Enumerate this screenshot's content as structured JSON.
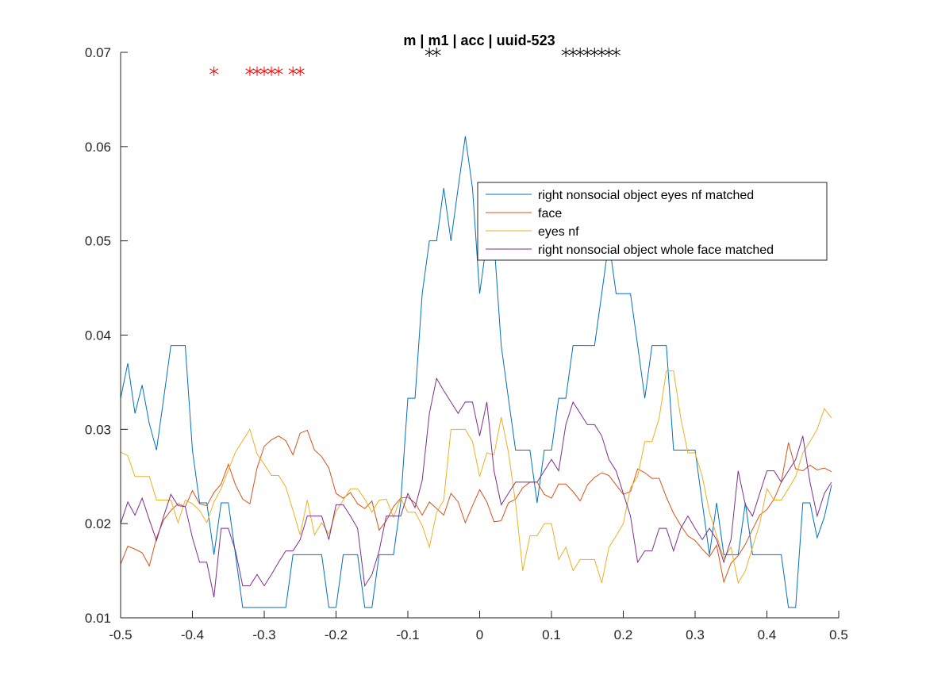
{
  "chart_data": {
    "type": "line",
    "title": "m | m1 | acc | uuid-523",
    "xlabel": "",
    "ylabel": "",
    "xlim": [
      -0.5,
      0.5
    ],
    "ylim": [
      0.01,
      0.07
    ],
    "xticks": [
      -0.5,
      -0.4,
      -0.3,
      -0.2,
      -0.1,
      0,
      0.1,
      0.2,
      0.3,
      0.4,
      0.5
    ],
    "xtick_labels": [
      "-0.5",
      "-0.4",
      "-0.3",
      "-0.2",
      "-0.1",
      "0",
      "0.1",
      "0.2",
      "0.3",
      "0.4",
      "0.5"
    ],
    "yticks": [
      0.01,
      0.02,
      0.03,
      0.04,
      0.05,
      0.06,
      0.07
    ],
    "ytick_labels": [
      "0.01",
      "0.02",
      "0.03",
      "0.04",
      "0.05",
      "0.06",
      "0.07"
    ],
    "grid": false,
    "legend_position": "top-right",
    "x": [
      -0.5,
      -0.49,
      -0.48,
      -0.47,
      -0.46,
      -0.45,
      -0.44,
      -0.43,
      -0.42,
      -0.41,
      -0.4,
      -0.39,
      -0.38,
      -0.37,
      -0.36,
      -0.35,
      -0.34,
      -0.33,
      -0.32,
      -0.31,
      -0.3,
      -0.29,
      -0.28,
      -0.27,
      -0.26,
      -0.25,
      -0.24,
      -0.23,
      -0.22,
      -0.21,
      -0.2,
      -0.19,
      -0.18,
      -0.17,
      -0.16,
      -0.15,
      -0.14,
      -0.13,
      -0.12,
      -0.11,
      -0.1,
      -0.09,
      -0.08,
      -0.07,
      -0.06,
      -0.05,
      -0.04,
      -0.03,
      -0.02,
      -0.01,
      0,
      0.01,
      0.02,
      0.03,
      0.04,
      0.05,
      0.06,
      0.07,
      0.08,
      0.09,
      0.1,
      0.11,
      0.12,
      0.13,
      0.14,
      0.15,
      0.16,
      0.17,
      0.18,
      0.19,
      0.2,
      0.21,
      0.22,
      0.23,
      0.24,
      0.25,
      0.26,
      0.27,
      0.28,
      0.29,
      0.3,
      0.31,
      0.32,
      0.33,
      0.34,
      0.35,
      0.36,
      0.37,
      0.38,
      0.39,
      0.4,
      0.41,
      0.42,
      0.43,
      0.44,
      0.45,
      0.46,
      0.47,
      0.48,
      0.49
    ],
    "series": [
      {
        "name": "right nonsocial object eyes nf matched",
        "color": "#0072BD",
        "values": [
          0.0333,
          0.037,
          0.0317,
          0.0347,
          0.0306,
          0.0278,
          0.0333,
          0.0389,
          0.0389,
          0.0389,
          0.0278,
          0.0222,
          0.0222,
          0.0167,
          0.0222,
          0.0222,
          0.0167,
          0.0111,
          0.0111,
          0.0111,
          0.0111,
          0.0111,
          0.0111,
          0.0111,
          0.0167,
          0.0167,
          0.0167,
          0.0167,
          0.0167,
          0.0111,
          0.0111,
          0.0167,
          0.0167,
          0.0167,
          0.0111,
          0.0111,
          0.0167,
          0.0167,
          0.0167,
          0.0222,
          0.0333,
          0.0333,
          0.0444,
          0.05,
          0.05,
          0.0556,
          0.05,
          0.0556,
          0.0611,
          0.0556,
          0.0444,
          0.05,
          0.05,
          0.0389,
          0.0333,
          0.0278,
          0.0278,
          0.0278,
          0.0222,
          0.0278,
          0.0278,
          0.0333,
          0.0333,
          0.0389,
          0.0389,
          0.0389,
          0.0389,
          0.0444,
          0.05,
          0.0444,
          0.0444,
          0.0444,
          0.0389,
          0.0333,
          0.0389,
          0.0389,
          0.0389,
          0.0278,
          0.0278,
          0.0278,
          0.0278,
          0.0222,
          0.0167,
          0.0222,
          0.0167,
          0.0167,
          0.0167,
          0.0222,
          0.0167,
          0.0167,
          0.0167,
          0.0167,
          0.0167,
          0.0111,
          0.0111,
          0.0222,
          0.0222,
          0.0185,
          0.0207,
          0.0241
        ]
      },
      {
        "name": "face",
        "color": "#D95319",
        "values": [
          0.0157,
          0.0176,
          0.0173,
          0.0169,
          0.0155,
          0.0185,
          0.0204,
          0.0214,
          0.0221,
          0.0218,
          0.0235,
          0.0221,
          0.0219,
          0.0233,
          0.0242,
          0.0263,
          0.0241,
          0.0226,
          0.0221,
          0.0259,
          0.0282,
          0.0289,
          0.0293,
          0.0288,
          0.0273,
          0.0296,
          0.0299,
          0.0278,
          0.0271,
          0.0259,
          0.0232,
          0.0227,
          0.0233,
          0.0221,
          0.0216,
          0.0224,
          0.0193,
          0.0203,
          0.0218,
          0.0227,
          0.0228,
          0.0222,
          0.0209,
          0.0223,
          0.0216,
          0.0209,
          0.0232,
          0.0223,
          0.0201,
          0.0219,
          0.0236,
          0.0223,
          0.0202,
          0.0203,
          0.0222,
          0.0226,
          0.0238,
          0.0244,
          0.0244,
          0.0231,
          0.0227,
          0.0242,
          0.0242,
          0.0234,
          0.0224,
          0.0241,
          0.0249,
          0.0254,
          0.0251,
          0.0241,
          0.0231,
          0.0234,
          0.0258,
          0.0254,
          0.0248,
          0.0248,
          0.0228,
          0.0211,
          0.0198,
          0.0187,
          0.0182,
          0.0173,
          0.0165,
          0.0177,
          0.0138,
          0.0158,
          0.0166,
          0.0178,
          0.0194,
          0.0209,
          0.0215,
          0.0226,
          0.0244,
          0.0286,
          0.0258,
          0.0256,
          0.0262,
          0.0257,
          0.0259,
          0.0255
        ]
      },
      {
        "name": "eyes nf",
        "color": "#EDB120",
        "values": [
          0.0276,
          0.0272,
          0.025,
          0.025,
          0.025,
          0.0225,
          0.0225,
          0.0225,
          0.0201,
          0.0225,
          0.0221,
          0.0214,
          0.0201,
          0.0223,
          0.0237,
          0.0257,
          0.0276,
          0.0288,
          0.03,
          0.0274,
          0.0263,
          0.0251,
          0.0251,
          0.0239,
          0.0214,
          0.0188,
          0.0225,
          0.0188,
          0.0201,
          0.0189,
          0.0213,
          0.0225,
          0.0237,
          0.0237,
          0.0226,
          0.0212,
          0.0225,
          0.0226,
          0.0207,
          0.0227,
          0.0212,
          0.0212,
          0.0198,
          0.0175,
          0.0212,
          0.0225,
          0.03,
          0.03,
          0.03,
          0.0287,
          0.025,
          0.0275,
          0.0273,
          0.0313,
          0.0276,
          0.0222,
          0.015,
          0.0187,
          0.0187,
          0.02,
          0.02,
          0.0162,
          0.0175,
          0.015,
          0.0162,
          0.0162,
          0.0162,
          0.0137,
          0.0175,
          0.0187,
          0.02,
          0.0238,
          0.025,
          0.0287,
          0.0287,
          0.0312,
          0.0362,
          0.0362,
          0.0312,
          0.0275,
          0.0275,
          0.025,
          0.0212,
          0.0187,
          0.0163,
          0.0175,
          0.0137,
          0.015,
          0.0175,
          0.02,
          0.0237,
          0.0225,
          0.0225,
          0.0237,
          0.025,
          0.0275,
          0.0287,
          0.03,
          0.0322,
          0.0312
        ]
      },
      {
        "name": "right nonsocial object whole face matched",
        "color": "#7E2F8E",
        "values": [
          0.02,
          0.0223,
          0.0209,
          0.0227,
          0.0204,
          0.0182,
          0.0208,
          0.0231,
          0.0219,
          0.0218,
          0.0185,
          0.0159,
          0.0159,
          0.0122,
          0.0195,
          0.0195,
          0.0171,
          0.0134,
          0.0134,
          0.0146,
          0.0134,
          0.0146,
          0.0159,
          0.0171,
          0.0171,
          0.0183,
          0.0208,
          0.0208,
          0.0208,
          0.0183,
          0.022,
          0.022,
          0.0208,
          0.0195,
          0.0134,
          0.0146,
          0.0171,
          0.0208,
          0.0208,
          0.0208,
          0.0232,
          0.0217,
          0.0246,
          0.0317,
          0.0354,
          0.0341,
          0.0329,
          0.0317,
          0.0329,
          0.0329,
          0.0293,
          0.0329,
          0.0256,
          0.022,
          0.0232,
          0.0244,
          0.0244,
          0.0244,
          0.0244,
          0.0256,
          0.0268,
          0.0256,
          0.0305,
          0.0329,
          0.0317,
          0.0305,
          0.0305,
          0.0293,
          0.0268,
          0.0256,
          0.0232,
          0.0208,
          0.0159,
          0.0171,
          0.0171,
          0.0195,
          0.0195,
          0.0171,
          0.0195,
          0.0208,
          0.0195,
          0.0183,
          0.0195,
          0.0183,
          0.0159,
          0.0183,
          0.0256,
          0.022,
          0.0208,
          0.0232,
          0.0256,
          0.0256,
          0.0244,
          0.0256,
          0.0268,
          0.0293,
          0.0244,
          0.0208,
          0.0232,
          0.0244
        ]
      }
    ],
    "markers": [
      {
        "color": "#FF0000",
        "y": 0.068,
        "x": [
          -0.37,
          -0.32,
          -0.31,
          -0.3,
          -0.29,
          -0.28,
          -0.26,
          -0.25
        ]
      },
      {
        "color": "#000000",
        "y": 0.07,
        "x": [
          -0.07,
          -0.06,
          0.12,
          0.13,
          0.14,
          0.15,
          0.16,
          0.17,
          0.18,
          0.19
        ]
      }
    ]
  }
}
